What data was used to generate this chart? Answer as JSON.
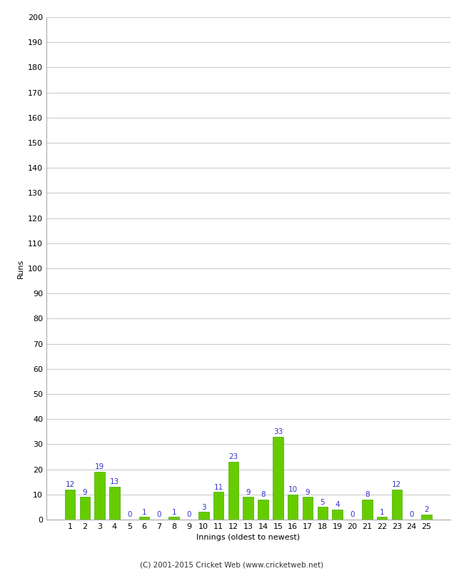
{
  "innings": [
    1,
    2,
    3,
    4,
    5,
    6,
    7,
    8,
    9,
    10,
    11,
    12,
    13,
    14,
    15,
    16,
    17,
    18,
    19,
    20,
    21,
    22,
    23,
    24,
    25
  ],
  "runs": [
    12,
    9,
    19,
    13,
    0,
    1,
    0,
    1,
    0,
    3,
    11,
    23,
    9,
    8,
    33,
    10,
    9,
    5,
    4,
    0,
    8,
    1,
    12,
    0,
    2
  ],
  "bar_color": "#66cc00",
  "bar_edge_color": "#44aa00",
  "label_color": "#3333cc",
  "xlabel": "Innings (oldest to newest)",
  "ylabel": "Runs",
  "footer": "(C) 2001-2015 Cricket Web (www.cricketweb.net)",
  "ylim": [
    0,
    200
  ],
  "yticks": [
    0,
    10,
    20,
    30,
    40,
    50,
    60,
    70,
    80,
    90,
    100,
    110,
    120,
    130,
    140,
    150,
    160,
    170,
    180,
    190,
    200
  ],
  "bg_color": "#ffffff",
  "grid_color": "#cccccc",
  "label_fontsize": 7.5,
  "axis_fontsize": 8,
  "footer_fontsize": 7.5
}
